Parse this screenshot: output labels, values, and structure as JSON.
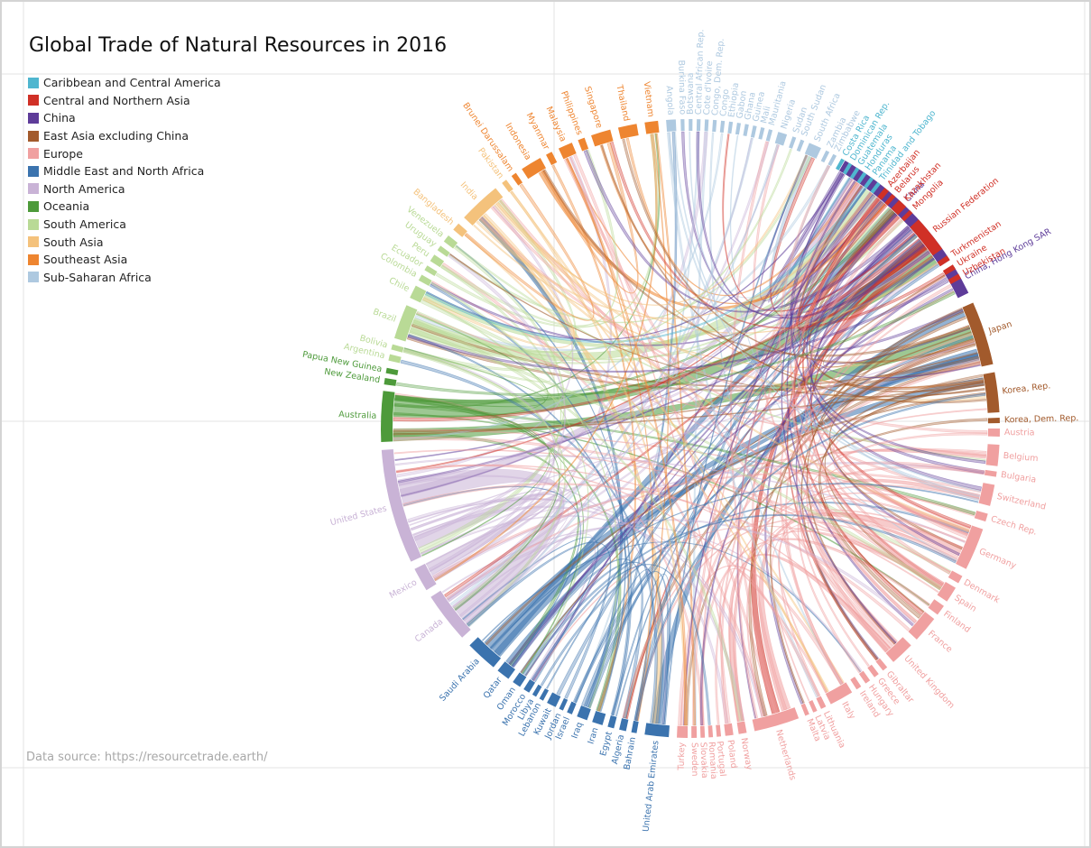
{
  "title": "Global Trade of Natural Resources in 2016",
  "source": "Data source: https://resourcetrade.earth/",
  "regions": [
    {
      "name": "Caribbean and Central America",
      "color": "#4fb6cf"
    },
    {
      "name": "Central and Northern Asia",
      "color": "#d03026"
    },
    {
      "name": "China",
      "color": "#5e3c99"
    },
    {
      "name": "East Asia excluding China",
      "color": "#a25a2c"
    },
    {
      "name": "Europe",
      "color": "#f0a0a0"
    },
    {
      "name": "Middle East and North Africa",
      "color": "#3b73ae"
    },
    {
      "name": "North America",
      "color": "#c9b3d6"
    },
    {
      "name": "Oceania",
      "color": "#4d9a3a"
    },
    {
      "name": "South America",
      "color": "#b9da96"
    },
    {
      "name": "South Asia",
      "color": "#f4c27c"
    },
    {
      "name": "Southeast Asia",
      "color": "#ee8530"
    },
    {
      "name": "Sub-Saharan Africa",
      "color": "#aec9e0"
    }
  ],
  "chart_data": {
    "type": "chord",
    "title": "Global Trade of Natural Resources in 2016",
    "nodes": [
      {
        "name": "China",
        "region": 2,
        "start": -60,
        "end": -33
      },
      {
        "name": "China, Hong Kong SAR",
        "region": 2,
        "start": -31.5,
        "end": -26
      },
      {
        "name": "Japan",
        "region": 3,
        "start": -24,
        "end": -12
      },
      {
        "name": "Korea, Rep.",
        "region": 3,
        "start": -10.5,
        "end": -3
      },
      {
        "name": "Korea, Dem. Rep.",
        "region": 3,
        "start": -2,
        "end": -1
      },
      {
        "name": "Austria",
        "region": 4,
        "start": 0,
        "end": 1.5
      },
      {
        "name": "Belgium",
        "region": 4,
        "start": 3,
        "end": 7
      },
      {
        "name": "Bulgaria",
        "region": 4,
        "start": 8,
        "end": 9
      },
      {
        "name": "Switzerland",
        "region": 4,
        "start": 10.5,
        "end": 14.5
      },
      {
        "name": "Czech Rep.",
        "region": 4,
        "start": 16,
        "end": 17.5
      },
      {
        "name": "Germany",
        "region": 4,
        "start": 19,
        "end": 27
      },
      {
        "name": "Denmark",
        "region": 4,
        "start": 28.5,
        "end": 30
      },
      {
        "name": "Spain",
        "region": 4,
        "start": 31,
        "end": 34
      },
      {
        "name": "Finland",
        "region": 4,
        "start": 35,
        "end": 37
      },
      {
        "name": "France",
        "region": 4,
        "start": 38,
        "end": 43
      },
      {
        "name": "United Kingdom",
        "region": 4,
        "start": 44.5,
        "end": 49
      },
      {
        "name": "Gibraltar",
        "region": 4,
        "start": 50.5,
        "end": 51.5
      },
      {
        "name": "Greece",
        "region": 4,
        "start": 52.5,
        "end": 53.5
      },
      {
        "name": "Hungary",
        "region": 4,
        "start": 54.5,
        "end": 55.5
      },
      {
        "name": "Ireland",
        "region": 4,
        "start": 56.5,
        "end": 57.5
      },
      {
        "name": "Italy",
        "region": 4,
        "start": 58.5,
        "end": 63
      },
      {
        "name": "Lithuania",
        "region": 4,
        "start": 64,
        "end": 65
      },
      {
        "name": "Latvia",
        "region": 4,
        "start": 65.8,
        "end": 66.6
      },
      {
        "name": "Malta",
        "region": 4,
        "start": 67.4,
        "end": 68.2
      },
      {
        "name": "Netherlands",
        "region": 4,
        "start": 69.5,
        "end": 78
      },
      {
        "name": "Norway",
        "region": 4,
        "start": 79.5,
        "end": 81
      },
      {
        "name": "Poland",
        "region": 4,
        "start": 82,
        "end": 83.5
      },
      {
        "name": "Portugal",
        "region": 4,
        "start": 84.3,
        "end": 85.1
      },
      {
        "name": "Romania",
        "region": 4,
        "start": 85.8,
        "end": 86.6
      },
      {
        "name": "Slovakia",
        "region": 4,
        "start": 87.3,
        "end": 88.1
      },
      {
        "name": "Sweden",
        "region": 4,
        "start": 88.8,
        "end": 89.8
      },
      {
        "name": "Turkey",
        "region": 4,
        "start": 90.5,
        "end": 92.5
      },
      {
        "name": "United Arab Emirates",
        "region": 5,
        "start": 94,
        "end": 98.5
      },
      {
        "name": "Bahrain",
        "region": 5,
        "start": 100,
        "end": 101
      },
      {
        "name": "Algeria",
        "region": 5,
        "start": 102,
        "end": 103.3
      },
      {
        "name": "Egypt",
        "region": 5,
        "start": 104.3,
        "end": 105.5
      },
      {
        "name": "Iran",
        "region": 5,
        "start": 106.5,
        "end": 108.5
      },
      {
        "name": "Iraq",
        "region": 5,
        "start": 109.5,
        "end": 111.5
      },
      {
        "name": "Israel",
        "region": 5,
        "start": 112.5,
        "end": 113.5
      },
      {
        "name": "Jordan",
        "region": 5,
        "start": 114.3,
        "end": 115.1
      },
      {
        "name": "Kuwait",
        "region": 5,
        "start": 115.8,
        "end": 117.6
      },
      {
        "name": "Lebanon",
        "region": 5,
        "start": 118.4,
        "end": 119.2
      },
      {
        "name": "Libya",
        "region": 5,
        "start": 119.9,
        "end": 120.7
      },
      {
        "name": "Morocco",
        "region": 5,
        "start": 121.4,
        "end": 122.6
      },
      {
        "name": "Oman",
        "region": 5,
        "start": 123.4,
        "end": 125
      },
      {
        "name": "Qatar",
        "region": 5,
        "start": 126,
        "end": 128.5
      },
      {
        "name": "Saudi Arabia",
        "region": 5,
        "start": 129.5,
        "end": 135.5
      },
      {
        "name": "Canada",
        "region": 6,
        "start": 137.5,
        "end": 147
      },
      {
        "name": "Mexico",
        "region": 6,
        "start": 148.5,
        "end": 153
      },
      {
        "name": "United States",
        "region": 6,
        "start": 154.5,
        "end": 176
      },
      {
        "name": "Australia",
        "region": 7,
        "start": 177.5,
        "end": 187
      },
      {
        "name": "New Zealand",
        "region": 7,
        "start": 188.2,
        "end": 189.4
      },
      {
        "name": "Papua New Guinea",
        "region": 7,
        "start": 190.3,
        "end": 191.3
      },
      {
        "name": "Argentina",
        "region": 8,
        "start": 192.7,
        "end": 193.9
      },
      {
        "name": "Bolivia",
        "region": 8,
        "start": 194.8,
        "end": 195.8
      },
      {
        "name": "Brazil",
        "region": 8,
        "start": 197,
        "end": 203.5
      },
      {
        "name": "Chile",
        "region": 8,
        "start": 205,
        "end": 207.5
      },
      {
        "name": "Colombia",
        "region": 8,
        "start": 208.6,
        "end": 209.8
      },
      {
        "name": "Ecuador",
        "region": 8,
        "start": 210.8,
        "end": 211.8
      },
      {
        "name": "Peru",
        "region": 8,
        "start": 212.8,
        "end": 214.2
      },
      {
        "name": "Uruguay",
        "region": 8,
        "start": 215.2,
        "end": 216.2
      },
      {
        "name": "Venezuela",
        "region": 8,
        "start": 217.2,
        "end": 218.6
      },
      {
        "name": "Bangladesh",
        "region": 9,
        "start": 220,
        "end": 221.5
      },
      {
        "name": "India",
        "region": 9,
        "start": 223,
        "end": 231
      },
      {
        "name": "Pakistan",
        "region": 9,
        "start": 232.5,
        "end": 233.5
      },
      {
        "name": "Brunei Darussalam",
        "region": 10,
        "start": 234.7,
        "end": 235.7
      },
      {
        "name": "Indonesia",
        "region": 10,
        "start": 237,
        "end": 241
      },
      {
        "name": "Myanmar",
        "region": 10,
        "start": 242.2,
        "end": 243.4
      },
      {
        "name": "Malaysia",
        "region": 10,
        "start": 244.8,
        "end": 247.5
      },
      {
        "name": "Philippines",
        "region": 10,
        "start": 248.7,
        "end": 250
      },
      {
        "name": "Singapore",
        "region": 10,
        "start": 251.3,
        "end": 255
      },
      {
        "name": "Thailand",
        "region": 10,
        "start": 256.5,
        "end": 260
      },
      {
        "name": "Vietnam",
        "region": 10,
        "start": 261.5,
        "end": 264
      },
      {
        "name": "Angola",
        "region": 11,
        "start": 265.5,
        "end": 267.3
      },
      {
        "name": "Burkina Faso",
        "region": 11,
        "start": 268.2,
        "end": 268.9
      },
      {
        "name": "Botswana",
        "region": 11,
        "start": 269.7,
        "end": 270.4
      },
      {
        "name": "Central African Rep.",
        "region": 11,
        "start": 271.2,
        "end": 271.9
      },
      {
        "name": "Cote d'Ivoire",
        "region": 11,
        "start": 272.7,
        "end": 273.4
      },
      {
        "name": "Congo, Dem. Rep.",
        "region": 11,
        "start": 274.2,
        "end": 274.9
      },
      {
        "name": "Congo",
        "region": 11,
        "start": 275.7,
        "end": 276.4
      },
      {
        "name": "Ethiopia",
        "region": 11,
        "start": 277.2,
        "end": 277.9
      },
      {
        "name": "Gabon",
        "region": 11,
        "start": 278.7,
        "end": 279.4
      },
      {
        "name": "Ghana",
        "region": 11,
        "start": 280.2,
        "end": 280.9
      },
      {
        "name": "Guinea",
        "region": 11,
        "start": 281.7,
        "end": 282.4
      },
      {
        "name": "Mali",
        "region": 11,
        "start": 283.2,
        "end": 283.9
      },
      {
        "name": "Mauritania",
        "region": 11,
        "start": 284.7,
        "end": 285.4
      },
      {
        "name": "Nigeria",
        "region": 11,
        "start": 286.5,
        "end": 288.2
      },
      {
        "name": "Sudan",
        "region": 11,
        "start": 289.3,
        "end": 290
      },
      {
        "name": "South Sudan",
        "region": 11,
        "start": 290.9,
        "end": 291.6
      },
      {
        "name": "South Africa",
        "region": 11,
        "start": 292.6,
        "end": 295
      },
      {
        "name": "Zambia",
        "region": 11,
        "start": 296,
        "end": 296.7
      },
      {
        "name": "Zimbabwe",
        "region": 11,
        "start": 297.5,
        "end": 298.2
      },
      {
        "name": "Costa Rica",
        "region": 0,
        "start": 299.2,
        "end": 299.9
      },
      {
        "name": "Dominican Rep.",
        "region": 0,
        "start": 300.8,
        "end": 301.5
      },
      {
        "name": "Guatemala",
        "region": 0,
        "start": 302.4,
        "end": 303.1
      },
      {
        "name": "Honduras",
        "region": 0,
        "start": 304,
        "end": 304.7
      },
      {
        "name": "Panama",
        "region": 0,
        "start": 305.6,
        "end": 306.3
      },
      {
        "name": "Trinidad and Tobago",
        "region": 0,
        "start": 307.2,
        "end": 307.9
      },
      {
        "name": "Azerbaijan",
        "region": 1,
        "start": 308.9,
        "end": 309.9
      },
      {
        "name": "Belarus",
        "region": 1,
        "start": 310.7,
        "end": 311.5
      },
      {
        "name": "Kazakhstan",
        "region": 1,
        "start": 312.4,
        "end": 314.2
      },
      {
        "name": "Mongolia",
        "region": 1,
        "start": 315.1,
        "end": 315.9
      },
      {
        "name": "Russian Federation",
        "region": 1,
        "start": 317.5,
        "end": 324.5
      },
      {
        "name": "Turkmenistan",
        "region": 1,
        "start": 326,
        "end": 327
      },
      {
        "name": "Ukraine",
        "region": 1,
        "start": 328,
        "end": 329
      },
      {
        "name": "Uzbekistan",
        "region": 1,
        "start": 330,
        "end": 331
      }
    ]
  }
}
